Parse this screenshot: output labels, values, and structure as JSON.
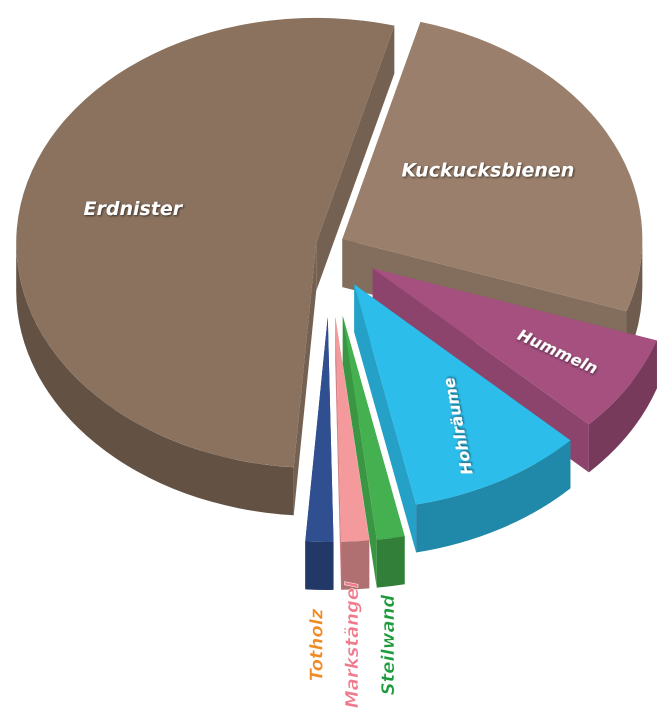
{
  "chart_data": {
    "type": "pie",
    "categories": [
      "Erdnister",
      "Kuckucksbienen",
      "Hummeln",
      "Hohlräume",
      "Steilwand",
      "Markstängel",
      "Totholz"
    ],
    "values": [
      53,
      26,
      7,
      9.5,
      1.5,
      1.5,
      1.5
    ],
    "colors": [
      "#8a725f",
      "#9a806c",
      "#a5507f",
      "#2cbdea",
      "#44b04f",
      "#f49a9c",
      "#2f4f91"
    ],
    "label_colors": [
      "#ffffff",
      "#ffffff",
      "#ffffff",
      "#ffffff",
      "#1c9a3c",
      "#f07a8c",
      "#f08a24"
    ]
  }
}
